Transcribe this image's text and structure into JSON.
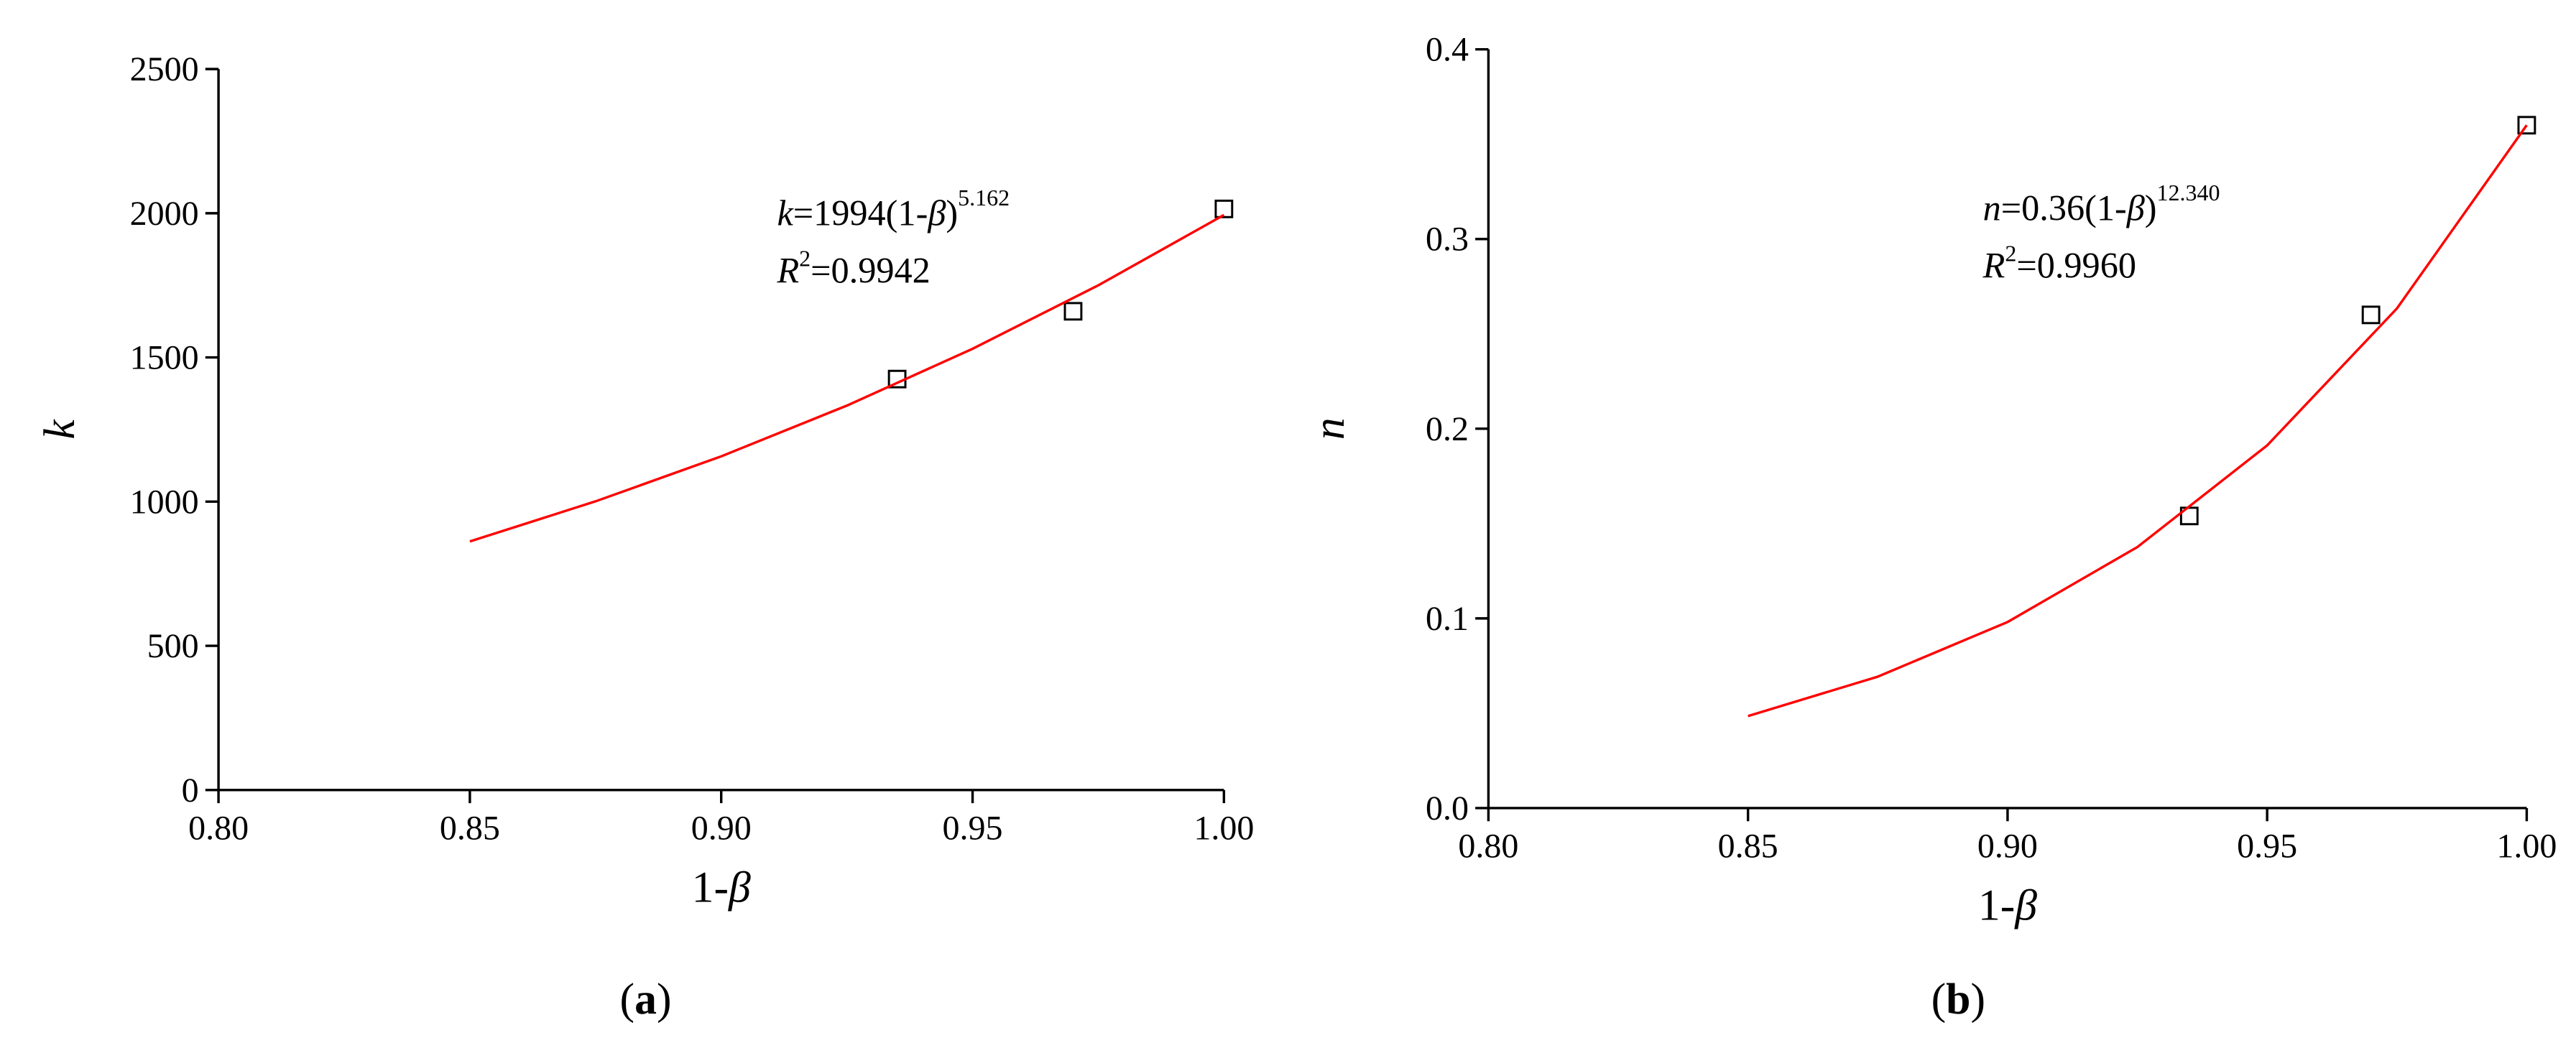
{
  "chart_data": [
    {
      "type": "scatter",
      "caption": [
        "(",
        "a",
        ")"
      ],
      "xlabel": [
        "1-",
        "β"
      ],
      "ylabel": "k",
      "annotation": {
        "fit": [
          "k",
          "=1994(1-",
          "β",
          ")",
          "5.162"
        ],
        "r2": [
          "R",
          "2",
          "=0.9942"
        ]
      },
      "xlim": [
        0.8,
        1.0
      ],
      "xticks": [
        {
          "value": 0.8,
          "label": "0.80"
        },
        {
          "value": 0.85,
          "label": "0.85"
        },
        {
          "value": 0.9,
          "label": "0.90"
        },
        {
          "value": 0.95,
          "label": "0.95"
        },
        {
          "value": 1.0,
          "label": "1.00"
        }
      ],
      "ylim": [
        0,
        2500
      ],
      "yticks": [
        0,
        500,
        1000,
        1500,
        2000,
        2500
      ],
      "series": [
        {
          "kind": "points",
          "color": "#000000",
          "x": [
            0.935,
            0.97,
            1.0
          ],
          "values": [
            1425,
            1660,
            2015
          ]
        },
        {
          "kind": "line",
          "color": "#ff0000",
          "x": [
            0.85,
            0.875,
            0.9,
            0.925,
            0.95,
            0.975,
            1.0
          ],
          "values": [
            862,
            1001,
            1157,
            1333,
            1530,
            1750,
            1994
          ]
        }
      ]
    },
    {
      "type": "scatter",
      "caption": [
        "(",
        "b",
        ")"
      ],
      "xlabel": [
        "1-",
        "β"
      ],
      "ylabel": "n",
      "annotation": {
        "fit": [
          "n",
          "=0.36(1-",
          "β",
          ")",
          "12.340"
        ],
        "r2": [
          "R",
          "2",
          "=0.9960"
        ]
      },
      "xlim": [
        0.8,
        1.0
      ],
      "xticks": [
        {
          "value": 0.8,
          "label": "0.80"
        },
        {
          "value": 0.85,
          "label": "0.85"
        },
        {
          "value": 0.9,
          "label": "0.90"
        },
        {
          "value": 0.95,
          "label": "0.95"
        },
        {
          "value": 1.0,
          "label": "1.00"
        }
      ],
      "ylim": [
        0,
        0.4
      ],
      "yticks": [
        {
          "value": 0,
          "label": "0.0"
        },
        0.1,
        0.2,
        0.3,
        0.4
      ],
      "series": [
        {
          "kind": "points",
          "color": "#000000",
          "x": [
            0.935,
            0.97,
            1.0
          ],
          "values": [
            0.154,
            0.26,
            0.36
          ]
        },
        {
          "kind": "line",
          "color": "#ff0000",
          "x": [
            0.85,
            0.875,
            0.9,
            0.925,
            0.95,
            0.975,
            1.0
          ],
          "values": [
            0.0485,
            0.0693,
            0.0981,
            0.1376,
            0.1912,
            0.2634,
            0.36
          ]
        }
      ]
    }
  ]
}
